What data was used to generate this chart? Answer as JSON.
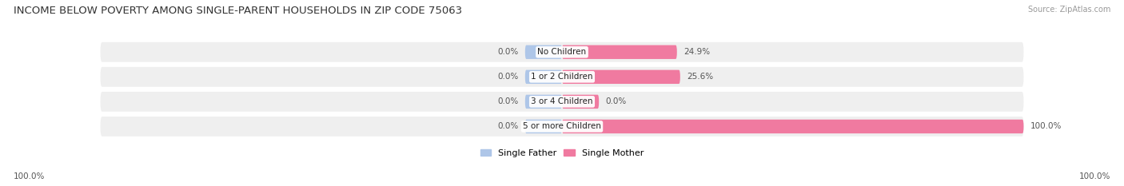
{
  "title": "INCOME BELOW POVERTY AMONG SINGLE-PARENT HOUSEHOLDS IN ZIP CODE 75063",
  "source": "Source: ZipAtlas.com",
  "categories": [
    "No Children",
    "1 or 2 Children",
    "3 or 4 Children",
    "5 or more Children"
  ],
  "single_father": [
    0.0,
    0.0,
    0.0,
    0.0
  ],
  "single_mother": [
    24.9,
    25.6,
    0.0,
    100.0
  ],
  "father_color": "#aec6e8",
  "mother_color": "#f07aa0",
  "bg_bar_color": "#efefef",
  "title_fontsize": 9.5,
  "source_fontsize": 7.0,
  "label_fontsize": 7.5,
  "cat_fontsize": 7.5,
  "axis_max": 100.0,
  "legend_father": "Single Father",
  "legend_mother": "Single Mother",
  "left_label": "100.0%",
  "right_label": "100.0%",
  "background_color": "#ffffff",
  "father_stub": 8.0
}
